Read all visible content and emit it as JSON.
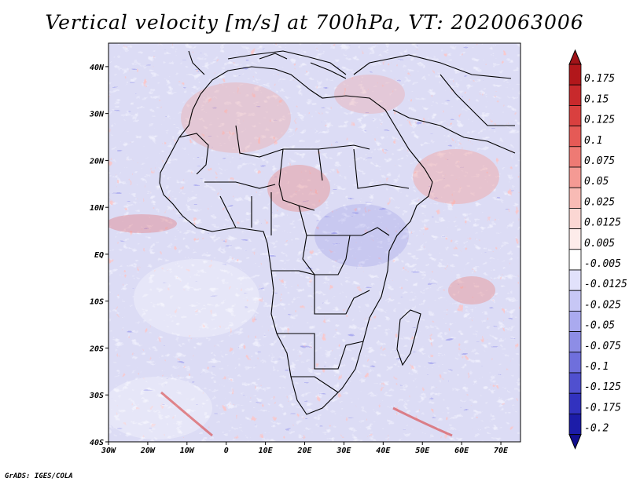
{
  "title": "Vertical velocity [m/s] at 700hPa, VT: 2020063006",
  "footer": "GrADS: IGES/COLA",
  "map": {
    "lon_range": [
      -30,
      75
    ],
    "lat_range": [
      -40,
      45
    ],
    "x_ticks": [
      {
        "label": "30W",
        "lon": -30
      },
      {
        "label": "20W",
        "lon": -20
      },
      {
        "label": "10W",
        "lon": -10
      },
      {
        "label": "0",
        "lon": 0
      },
      {
        "label": "10E",
        "lon": 10
      },
      {
        "label": "20E",
        "lon": 20
      },
      {
        "label": "30E",
        "lon": 30
      },
      {
        "label": "40E",
        "lon": 40
      },
      {
        "label": "50E",
        "lon": 50
      },
      {
        "label": "60E",
        "lon": 60
      },
      {
        "label": "70E",
        "lon": 70
      }
    ],
    "y_ticks": [
      {
        "label": "40N",
        "lat": 40
      },
      {
        "label": "30N",
        "lat": 30
      },
      {
        "label": "20N",
        "lat": 20
      },
      {
        "label": "10N",
        "lat": 10
      },
      {
        "label": "EQ",
        "lat": 0
      },
      {
        "label": "10S",
        "lat": -10
      },
      {
        "label": "20S",
        "lat": -20
      },
      {
        "label": "30S",
        "lat": -30
      },
      {
        "label": "40S",
        "lat": -40
      }
    ]
  },
  "colorbar": {
    "levels": [
      {
        "label": "0.175",
        "color": "#b2171b"
      },
      {
        "label": "0.15",
        "color": "#c8292c"
      },
      {
        "label": "0.125",
        "color": "#d9403f"
      },
      {
        "label": "0.1",
        "color": "#e55a56"
      },
      {
        "label": "0.075",
        "color": "#ee7a74"
      },
      {
        "label": "0.05",
        "color": "#f49a94"
      },
      {
        "label": "0.025",
        "color": "#f8bbb5"
      },
      {
        "label": "0.0125",
        "color": "#fbd7d3"
      },
      {
        "label": "0.005",
        "color": "#fdecea"
      },
      {
        "label": "-0.005",
        "color": "#ffffff"
      },
      {
        "label": "-0.0125",
        "color": "#e1e1fb"
      },
      {
        "label": "-0.025",
        "color": "#c7c7f5"
      },
      {
        "label": "-0.05",
        "color": "#aaaaef"
      },
      {
        "label": "-0.075",
        "color": "#8d8de6"
      },
      {
        "label": "-0.1",
        "color": "#6f6fdc"
      },
      {
        "label": "-0.125",
        "color": "#5050cf"
      },
      {
        "label": "-0.175",
        "color": "#3232bf"
      },
      {
        "label": "-0.2",
        "color": "#1c1ca8"
      }
    ],
    "top_color": "#a01318",
    "bottom_color": "#120f8f"
  },
  "chart_data": {
    "type": "heatmap",
    "title": "Vertical velocity [m/s] at 700hPa, VT: 2020063006",
    "variable": "Vertical velocity",
    "units": "m/s",
    "level": "700hPa",
    "valid_time": "2020063006",
    "x_range": [
      -30,
      75
    ],
    "y_range": [
      -40,
      45
    ],
    "contour_levels": [
      -0.2,
      -0.175,
      -0.125,
      -0.1,
      -0.075,
      -0.05,
      -0.025,
      -0.0125,
      -0.005,
      0.005,
      0.0125,
      0.025,
      0.05,
      0.075,
      0.1,
      0.125,
      0.15,
      0.175
    ]
  }
}
